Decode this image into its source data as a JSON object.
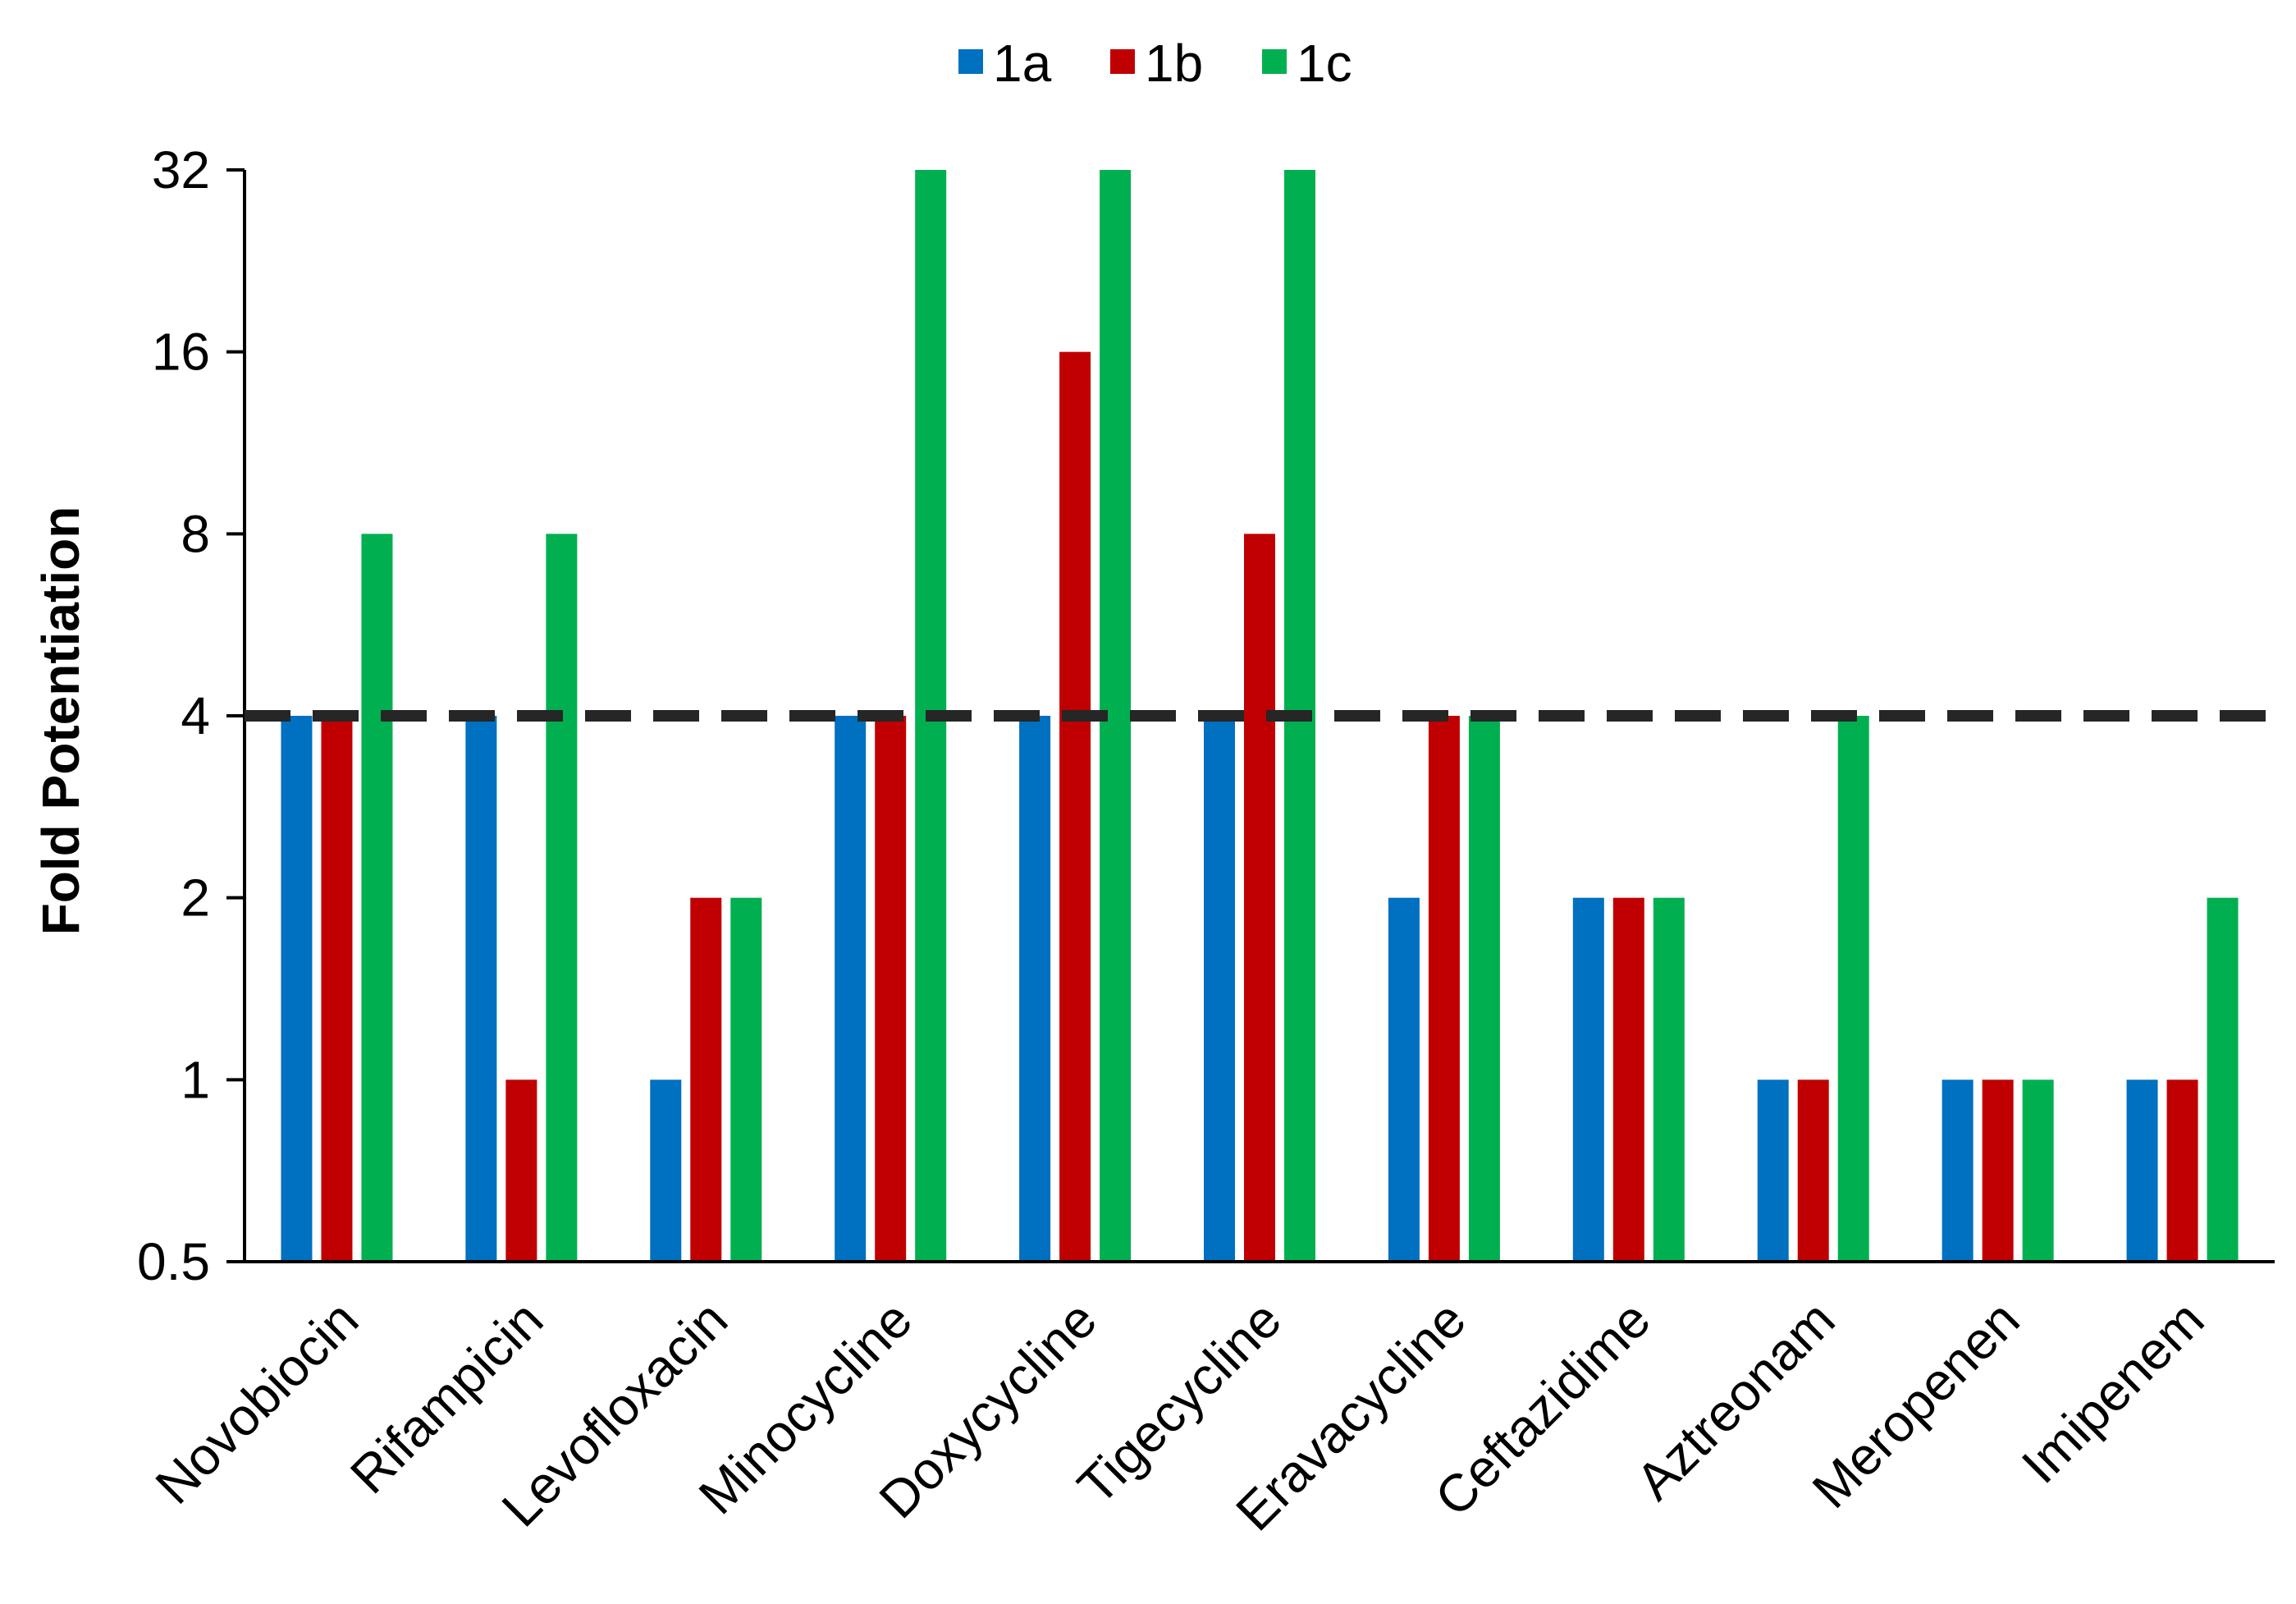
{
  "chart_data": {
    "type": "bar",
    "scale": "log2",
    "title": "",
    "xlabel": "",
    "ylabel": "Fold Potentiation",
    "ylim": [
      0.5,
      32
    ],
    "yticks": [
      0.5,
      1,
      2,
      4,
      8,
      16,
      32
    ],
    "ytick_labels": [
      "0.5",
      "1",
      "2",
      "4",
      "8",
      "16",
      "32"
    ],
    "categories": [
      "Novobiocin",
      "Rifampicin",
      "Levofloxacin",
      "Minocycline",
      "Doxycycline",
      "Tigecycline",
      "Eravacycline",
      "Ceftazidime",
      "Aztreonam",
      "Meropenen",
      "Imipenem"
    ],
    "series": [
      {
        "name": "1a",
        "color": "#0070C0",
        "values": [
          4,
          4,
          1,
          4,
          4,
          4,
          2,
          2,
          1,
          1,
          1
        ]
      },
      {
        "name": "1b",
        "color": "#C00000",
        "values": [
          4,
          1,
          2,
          4,
          16,
          8,
          4,
          2,
          1,
          1,
          1
        ]
      },
      {
        "name": "1c",
        "color": "#00B050",
        "values": [
          8,
          8,
          2,
          32,
          32,
          32,
          4,
          2,
          4,
          1,
          2
        ]
      }
    ],
    "reference_line": {
      "value": 4,
      "style": "dashed",
      "color": "#262626"
    },
    "legend": {
      "position": "top-center",
      "entries": [
        "1a",
        "1b",
        "1c"
      ]
    },
    "grid": false
  }
}
